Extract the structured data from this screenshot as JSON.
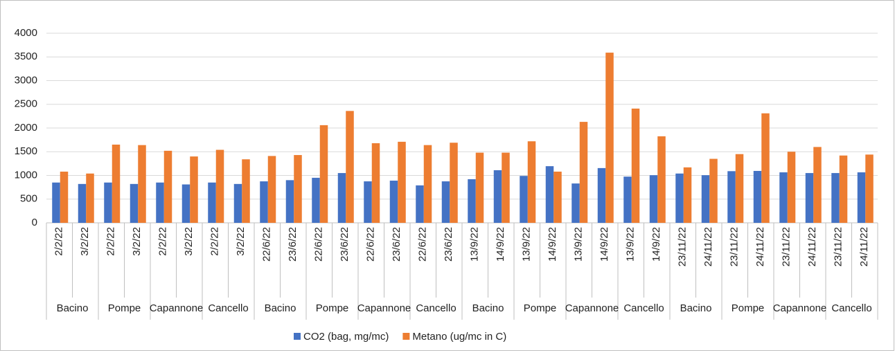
{
  "chart_data": {
    "type": "bar",
    "categories": [
      "2/2/22",
      "3/2/22",
      "2/2/22",
      "3/2/22",
      "2/2/22",
      "3/2/22",
      "2/2/22",
      "3/2/22",
      "22/6/22",
      "23/6/22",
      "22/6/22",
      "23/6/22",
      "22/6/22",
      "23/6/22",
      "22/6/22",
      "23/6/22",
      "13/9/22",
      "14/9/22",
      "13/9/22",
      "14/9/22",
      "13/9/22",
      "14/9/22",
      "13/9/22",
      "14/9/22",
      "23/11/22",
      "24/11/22",
      "23/11/22",
      "24/11/22",
      "23/11/22",
      "24/11/22",
      "23/11/22",
      "24/11/22"
    ],
    "groups": [
      "Bacino",
      "Pompe",
      "Capannone",
      "Cancello",
      "Bacino",
      "Pompe",
      "Capannone",
      "Cancello",
      "Bacino",
      "Pompe",
      "Capannone",
      "Cancello",
      "Bacino",
      "Pompe",
      "Capannone",
      "Cancello"
    ],
    "series": [
      {
        "name": "CO2 (bag, mg/mc)",
        "color": "#4472c4",
        "values": [
          850,
          820,
          850,
          820,
          850,
          810,
          850,
          820,
          875,
          900,
          950,
          1050,
          875,
          890,
          790,
          875,
          920,
          1110,
          990,
          1195,
          830,
          1155,
          975,
          1005,
          1040,
          1005,
          1090,
          1095,
          1065,
          1050,
          1050,
          1065
        ]
      },
      {
        "name": "Metano (ug/mc in C)",
        "color": "#ed7d31",
        "values": [
          1080,
          1040,
          1650,
          1640,
          1520,
          1400,
          1540,
          1340,
          1410,
          1430,
          2060,
          2360,
          1680,
          1710,
          1640,
          1690,
          1480,
          1480,
          1720,
          1080,
          2130,
          3590,
          2410,
          1825,
          1170,
          1350,
          1450,
          2310,
          1500,
          1600,
          1420,
          1440
        ]
      }
    ],
    "ylim": [
      0,
      4000
    ],
    "yticks": [
      0,
      500,
      1000,
      1500,
      2000,
      2500,
      3000,
      3500,
      4000
    ],
    "grid": true,
    "legend": "bottom"
  }
}
